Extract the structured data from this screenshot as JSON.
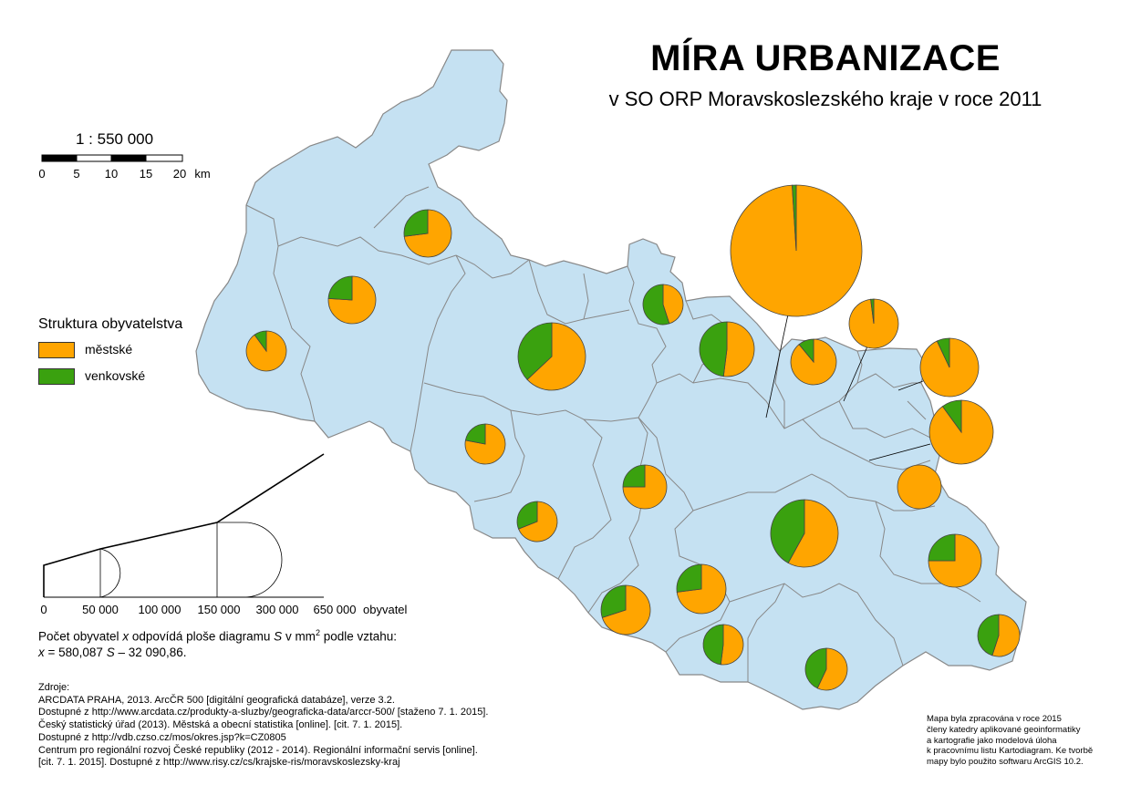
{
  "title": "MÍRA URBANIZACE",
  "subtitle": "v SO ORP Moravskoslezského kraje v roce 2011",
  "colors": {
    "region_fill": "#c5e1f2",
    "region_border": "#888888",
    "urban": "#ffa500",
    "rural": "#3aa10f"
  },
  "scale": {
    "label": "1 : 550 000",
    "ticks": [
      "0",
      "5",
      "10",
      "15",
      "20"
    ],
    "unit": "km"
  },
  "legend": {
    "title": "Struktura obyvatelstva",
    "items": [
      {
        "label": "městské",
        "color": "#ffa500"
      },
      {
        "label": "venkovské",
        "color": "#3aa10f"
      }
    ]
  },
  "size_scale": {
    "ticks": [
      "0",
      "50 000",
      "100 000",
      "150 000",
      "300 000",
      "650 000"
    ],
    "unit": "obyvatel",
    "formula_line1_pre": "Počet obyvatel ",
    "formula_line1_var": "x",
    "formula_line1_mid": " odpovídá ploše diagramu ",
    "formula_line1_var2": "S",
    "formula_line1_post": " v mm",
    "formula_line1_sup": "2",
    "formula_line1_end": " podle vztahu:",
    "formula_line2_var": "x",
    "formula_line2_mid": " = 580,087 ",
    "formula_line2_var2": "S",
    "formula_line2_end": " – 32 090,86."
  },
  "sources": [
    "Zdroje:",
    "ARCDATA PRAHA, 2013. ArcČR 500 [digitální geografická databáze], verze 3.2.",
    "Dostupné z http://www.arcdata.cz/produkty-a-sluzby/geograficka-data/arccr-500/ [staženo 7. 1. 2015].",
    "Český statistický úřad (2013). Městská a obecní statistika [online]. [cit. 7. 1. 2015].",
    "Dostupné z http://vdb.czso.cz/mos/okres.jsp?k=CZ0805",
    "Centrum pro regionální rozvoj České republiky (2012 - 2014). Regionální informační servis [online].",
    "[cit. 7. 1. 2015]. Dostupné z http://www.risy.cz/cs/krajske-ris/moravskoslezsky-kraj"
  ],
  "credits": [
    "Mapa byla zpracována v roce 2015",
    "členy katedry aplikované geoinformatiky",
    "a kartografie jako modelová úloha",
    "k pracovnímu listu Kartodiagram. Ke tvorbě",
    "mapy bylo použito softwaru ArcGIS 10.2."
  ],
  "pies": [
    {
      "urban_share": 0.99
    },
    {
      "urban_share": 0.98
    },
    {
      "urban_share": 0.89
    },
    {
      "urban_share": 0.93
    },
    {
      "urban_share": 0.9
    },
    {
      "urban_share": 1.0
    },
    {
      "urban_share": 0.45
    },
    {
      "urban_share": 0.52
    },
    {
      "urban_share": 0.63
    },
    {
      "urban_share": 0.73
    },
    {
      "urban_share": 0.76
    },
    {
      "urban_share": 0.9
    },
    {
      "urban_share": 0.78
    },
    {
      "urban_share": 0.75
    },
    {
      "urban_share": 0.69
    },
    {
      "urban_share": 0.75
    },
    {
      "urban_share": 0.73
    },
    {
      "urban_share": 0.58
    },
    {
      "urban_share": 0.7
    },
    {
      "urban_share": 0.52
    },
    {
      "urban_share": 0.57
    },
    {
      "urban_share": 0.55
    },
    {
      "urban_share": 0.25
    },
    {
      "urban_share": 0.85
    }
  ]
}
